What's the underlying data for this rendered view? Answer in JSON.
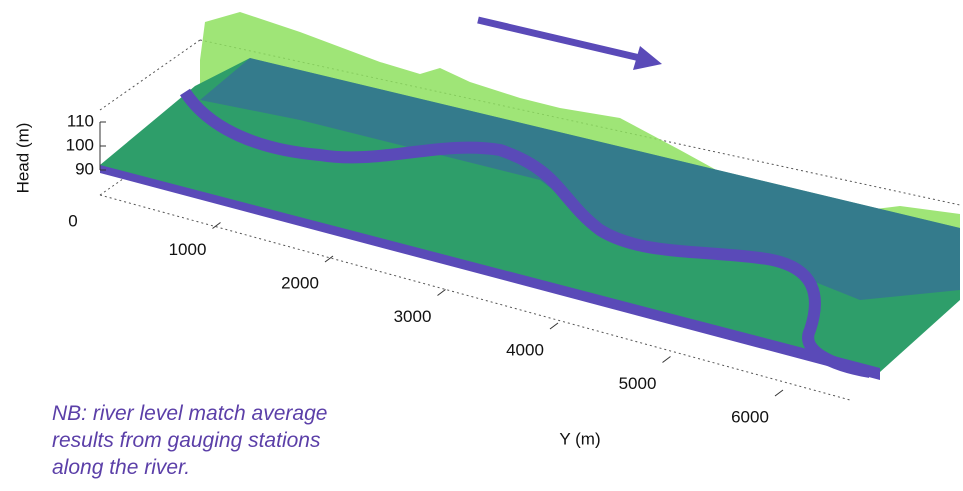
{
  "z_axis": {
    "label": "Head (m)",
    "ticks": [
      90,
      100,
      110
    ]
  },
  "origin_label": "0",
  "y_axis": {
    "label": "Y (m)",
    "ticks": [
      1000,
      2000,
      3000,
      4000,
      5000,
      6000
    ]
  },
  "note": [
    "NB: river level match average",
    "results from gauging stations",
    "along the river."
  ]
}
